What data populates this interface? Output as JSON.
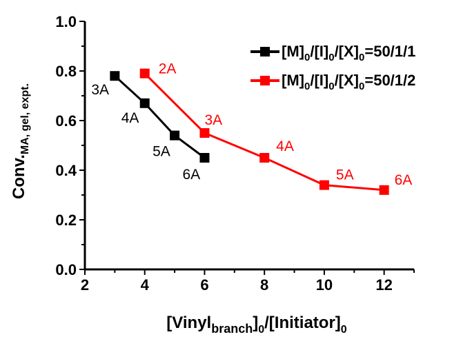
{
  "chart_data": {
    "type": "line",
    "xlabel": "[Vinyl_branch]_0/[Initiator]_0",
    "ylabel": "Conv._MA, gel, expt.",
    "xlim": [
      2,
      13
    ],
    "ylim": [
      0.0,
      1.0
    ],
    "x_ticks": [
      "2",
      "4",
      "6",
      "8",
      "10",
      "12"
    ],
    "y_ticks": [
      "0.0",
      "0.2",
      "0.4",
      "0.6",
      "0.8",
      "1.0"
    ],
    "grid": false,
    "legend_position": "top-right",
    "series": [
      {
        "name": "[M]0/[I]0/[X]0=50/1/1",
        "color": "#000000",
        "marker": "square",
        "points": [
          {
            "x": 3,
            "y": 0.78,
            "label": "3A"
          },
          {
            "x": 4,
            "y": 0.67,
            "label": "4A"
          },
          {
            "x": 5,
            "y": 0.54,
            "label": "5A"
          },
          {
            "x": 6,
            "y": 0.45,
            "label": "6A"
          }
        ]
      },
      {
        "name": "[M]0/[I]0/[X]0=50/1/2",
        "color": "#ff0000",
        "marker": "square",
        "points": [
          {
            "x": 4,
            "y": 0.79,
            "label": "2A"
          },
          {
            "x": 6,
            "y": 0.55,
            "label": "3A"
          },
          {
            "x": 8,
            "y": 0.45,
            "label": "4A"
          },
          {
            "x": 10,
            "y": 0.34,
            "label": "5A"
          },
          {
            "x": 12,
            "y": 0.32,
            "label": "6A"
          }
        ]
      }
    ]
  },
  "axis_text": {
    "x_main": "[Vinyl",
    "x_sub1": "branch",
    "x_mid": "]",
    "x_sub2": "0",
    "x_mid2": "/[Initiator]",
    "x_sub3": "0",
    "y_main": "Conv.",
    "y_sub": "MA, gel, expt."
  },
  "legend": [
    {
      "prefix": "[M]",
      "s1": "0",
      "mid1": "/[I]",
      "s2": "0",
      "mid2": "/[X]",
      "s3": "0",
      "suffix": "=50/1/1"
    },
    {
      "prefix": "[M]",
      "s1": "0",
      "mid1": "/[I]",
      "s2": "0",
      "mid2": "/[X]",
      "s3": "0",
      "suffix": "=50/1/2"
    }
  ]
}
